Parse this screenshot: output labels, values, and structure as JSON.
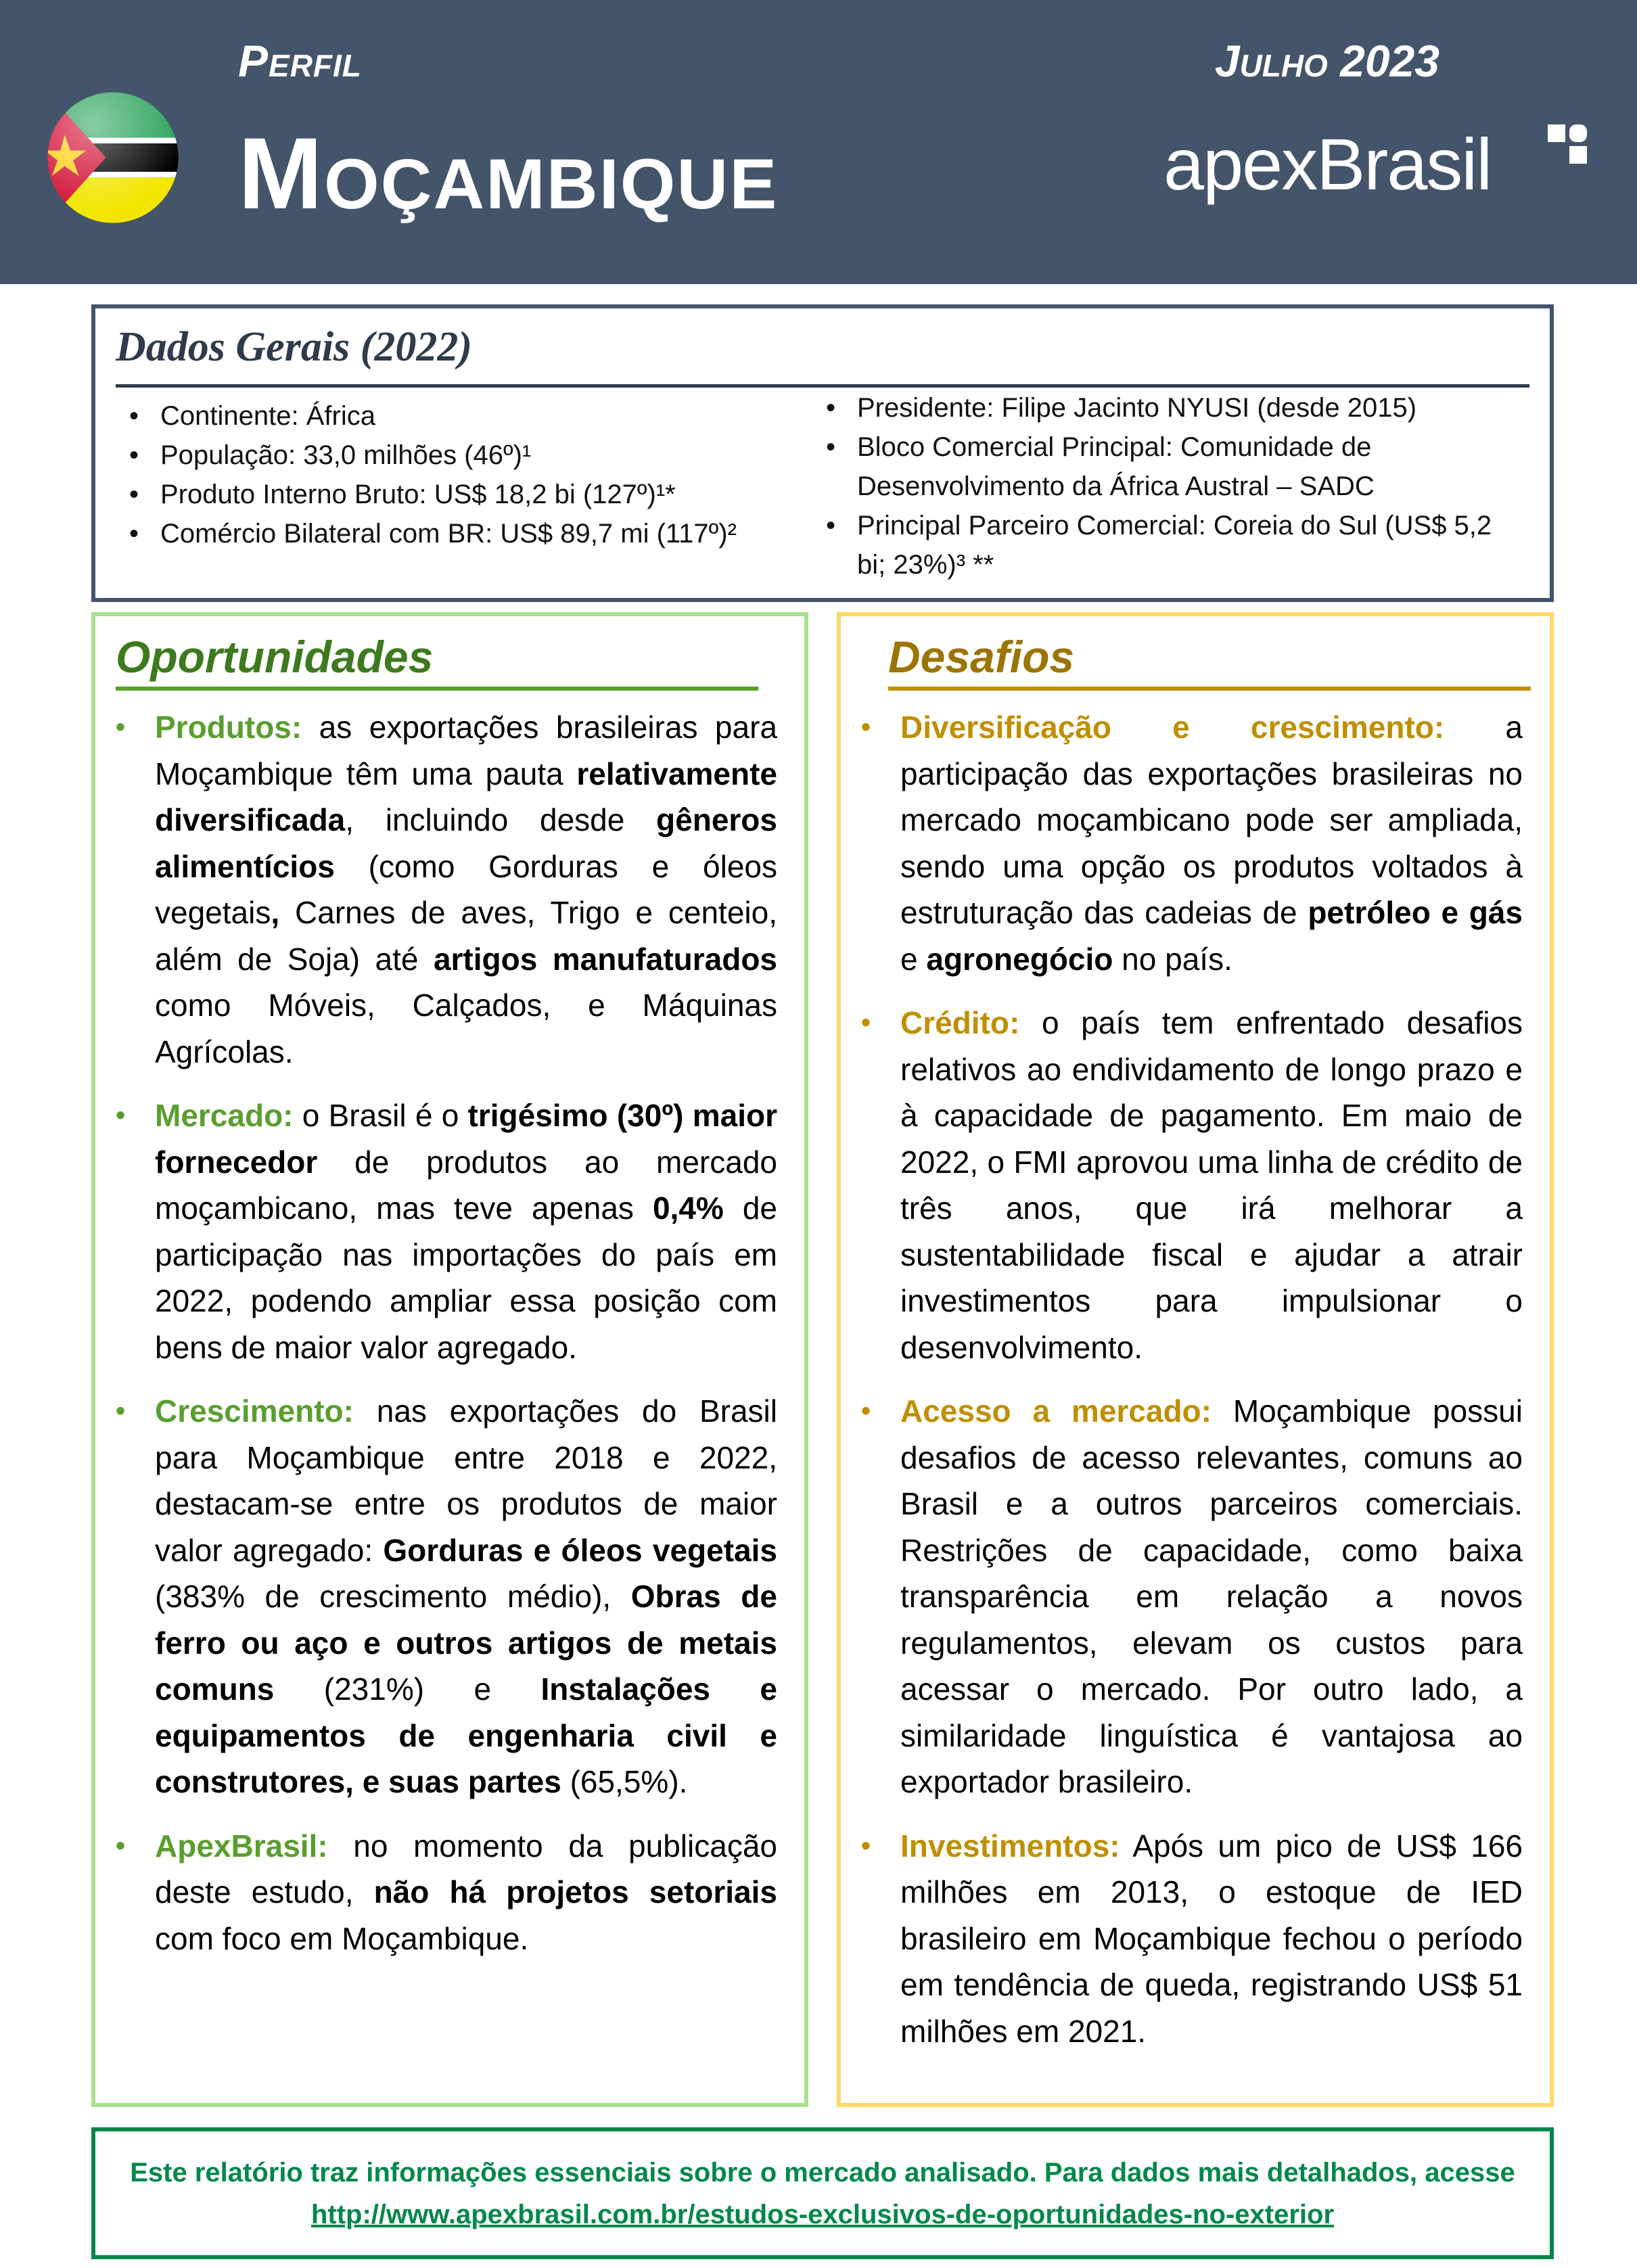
{
  "header": {
    "label": "Perfil",
    "country": "Moçambique",
    "date": "Julho 2023",
    "logo_text": "apexBrasil",
    "header_color": "#44546a"
  },
  "dados": {
    "title": "Dados Gerais (2022)",
    "left": [
      "Continente: África",
      "População: 33,0 milhões (46º)¹",
      "Produto Interno Bruto: US$ 18,2 bi (127º)¹*",
      "Comércio Bilateral com BR: US$ 89,7 mi (117º)²"
    ],
    "right": [
      "Presidente: Filipe Jacinto NYUSI (desde 2015)",
      "Bloco Comercial Principal: Comunidade de Desenvolvimento da África Austral – SADC",
      "Principal Parceiro Comercial: Coreia do Sul (US$ 5,2 bi; 23%)³ **"
    ]
  },
  "oportunidades": {
    "title": "Oportunidades",
    "accent": "#5a9e2f",
    "items": [
      {
        "label": "Produtos:",
        "parts": [
          {
            "t": " as exportações brasileiras para Moçambique têm uma pauta "
          },
          {
            "t": "relativamente diversificada",
            "b": true
          },
          {
            "t": ", incluindo desde "
          },
          {
            "t": "gêneros alimentícios",
            "b": true
          },
          {
            "t": " (como Gorduras e óleos vegetais"
          },
          {
            "t": ",",
            "b": true
          },
          {
            "t": " Carnes de aves, Trigo e centeio, além de Soja) até "
          },
          {
            "t": "artigos manufaturados",
            "b": true
          },
          {
            "t": " como Móveis, Calçados, e Máquinas Agrícolas."
          }
        ]
      },
      {
        "label": "Mercado:",
        "parts": [
          {
            "t": " o Brasil é o "
          },
          {
            "t": "trigésimo (30º) maior fornecedor",
            "b": true
          },
          {
            "t": " de produtos ao mercado moçambicano, mas teve apenas "
          },
          {
            "t": "0,4%",
            "b": true
          },
          {
            "t": " de participação nas importações do país em 2022, podendo ampliar essa posição com bens de maior valor agregado."
          }
        ]
      },
      {
        "label": "Crescimento:",
        "parts": [
          {
            "t": " nas exportações do Brasil para Moçambique entre 2018 e 2022, destacam-se entre os produtos de maior valor agregado: "
          },
          {
            "t": "Gorduras e óleos vegetais",
            "b": true
          },
          {
            "t": " (383% de crescimento médio), "
          },
          {
            "t": "Obras de ferro ou aço e outros artigos de metais comuns",
            "b": true
          },
          {
            "t": " (231%) e "
          },
          {
            "t": "Instalações e equipamentos de engenharia civil e construtores, e suas partes",
            "b": true
          },
          {
            "t": " (65,5%)."
          }
        ]
      },
      {
        "label": "ApexBrasil:",
        "parts": [
          {
            "t": " no momento da publicação deste estudo, "
          },
          {
            "t": "não há projetos setoriais",
            "b": true
          },
          {
            "t": " com foco em Moçambique."
          }
        ]
      }
    ]
  },
  "desafios": {
    "title": "Desafios",
    "accent": "#bf8f00",
    "items": [
      {
        "label": "Diversificação e crescimento:",
        "parts": [
          {
            "t": " a participação das exportações brasileiras no mercado moçambicano pode ser ampliada, sendo uma opção os produtos voltados à estruturação das cadeias de "
          },
          {
            "t": "petróleo e gás",
            "b": true
          },
          {
            "t": " e "
          },
          {
            "t": "agronegócio",
            "b": true
          },
          {
            "t": " no país."
          }
        ]
      },
      {
        "label": "Crédito:",
        "parts": [
          {
            "t": " o país tem enfrentado desafios relativos ao endividamento de longo prazo e à capacidade de pagamento. Em maio de 2022, o FMI aprovou uma linha de crédito de três anos, que irá melhorar a sustentabilidade fiscal e ajudar a atrair investimentos para impulsionar o desenvolvimento."
          }
        ]
      },
      {
        "label": "Acesso a mercado:",
        "parts": [
          {
            "t": " Moçambique possui desafios de acesso relevantes, comuns ao Brasil e a outros parceiros comerciais. Restrições de capacidade, como baixa transparência em relação a novos regulamentos, elevam os custos para acessar o mercado. Por outro lado, a similaridade linguística é vantajosa ao exportador brasileiro."
          }
        ]
      },
      {
        "label": "Investimentos:",
        "parts": [
          {
            "t": " Após um pico de US$ 166 milhões em 2013, o estoque de IED brasileiro em Moçambique fechou o período em tendência de queda, registrando US$ 51 milhões em 2021."
          }
        ]
      }
    ]
  },
  "footer": {
    "text": "Este relatório traz informações essenciais sobre o mercado analisado. Para dados mais detalhados, acesse ",
    "link": "http://www.apexbrasil.com.br/estudos-exclusivos-de-oportunidades-no-exterior",
    "color": "#00884a"
  }
}
